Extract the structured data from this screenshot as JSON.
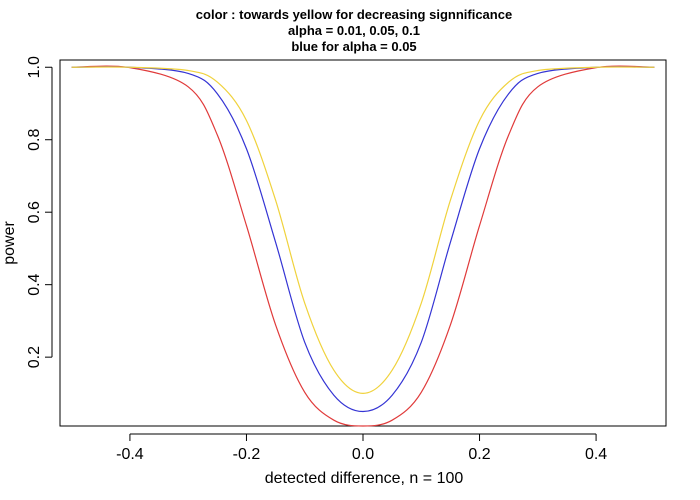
{
  "chart_data": {
    "type": "line",
    "title_lines": [
      "color : towards yellow for decreasing signnificance",
      "alpha =  0.01, 0.05, 0.1",
      "blue for alpha =  0.05"
    ],
    "xlabel": "detected difference, n =  100",
    "ylabel": "power",
    "xlim": [
      -0.52,
      0.52
    ],
    "ylim": [
      0.01,
      1.02
    ],
    "x_ticks": [
      -0.4,
      -0.2,
      0.0,
      0.2,
      0.4
    ],
    "x_tick_labels": [
      "-0.4",
      "-0.2",
      "0.0",
      "0.2",
      "0.4"
    ],
    "y_ticks": [
      0.2,
      0.4,
      0.6,
      0.8,
      1.0
    ],
    "y_tick_labels": [
      "0.2",
      "0.4",
      "0.6",
      "0.8",
      "1.0"
    ],
    "grid": false,
    "legend": "none",
    "series": [
      {
        "alpha": 0.01,
        "color": "#e03a3a",
        "x": [
          -0.5,
          -0.4,
          -0.3,
          -0.25,
          -0.2,
          -0.15,
          -0.1,
          -0.05,
          0.0,
          0.05,
          0.1,
          0.15,
          0.2,
          0.25,
          0.3,
          0.4,
          0.5
        ],
        "y": [
          1.0,
          0.999,
          0.946,
          0.813,
          0.563,
          0.289,
          0.103,
          0.026,
          0.01,
          0.026,
          0.103,
          0.289,
          0.563,
          0.813,
          0.946,
          0.999,
          1.0
        ]
      },
      {
        "alpha": 0.05,
        "color": "#3434d4",
        "x": [
          -0.5,
          -0.4,
          -0.3,
          -0.25,
          -0.2,
          -0.15,
          -0.1,
          -0.05,
          0.0,
          0.05,
          0.1,
          0.15,
          0.2,
          0.25,
          0.3,
          0.4,
          0.5
        ],
        "y": [
          1.0,
          1.0,
          0.983,
          0.927,
          0.775,
          0.517,
          0.241,
          0.095,
          0.05,
          0.095,
          0.241,
          0.517,
          0.775,
          0.927,
          0.983,
          1.0,
          1.0
        ]
      },
      {
        "alpha": 0.1,
        "color": "#f0d23c",
        "x": [
          -0.5,
          -0.4,
          -0.3,
          -0.25,
          -0.2,
          -0.15,
          -0.1,
          -0.05,
          0.0,
          0.05,
          0.1,
          0.15,
          0.2,
          0.25,
          0.3,
          0.4,
          0.5
        ],
        "y": [
          1.0,
          1.0,
          0.991,
          0.959,
          0.853,
          0.633,
          0.349,
          0.164,
          0.1,
          0.164,
          0.349,
          0.633,
          0.853,
          0.959,
          0.991,
          1.0,
          1.0
        ]
      }
    ]
  }
}
